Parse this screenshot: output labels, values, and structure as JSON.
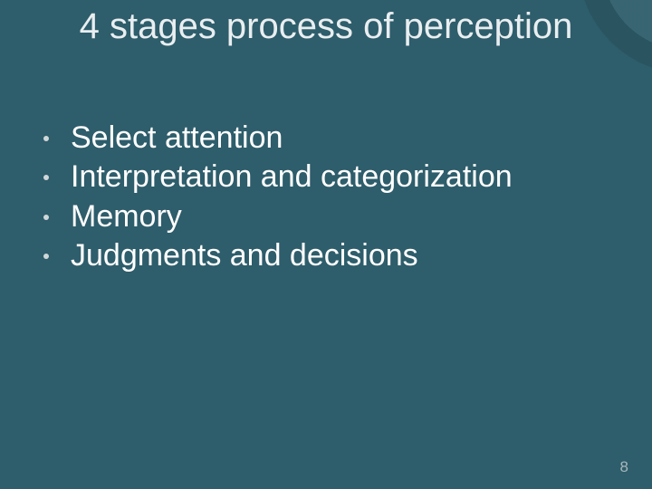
{
  "slide": {
    "background_color": "#2e5d6b",
    "text_color": "#ffffff",
    "muted_text_color": "#a8b6ba",
    "title": "4 stages process of perception",
    "title_fontsize": 40,
    "bullet_fontsize": 34,
    "bullets": [
      "Select attention",
      "Interpretation and categorization",
      "Memory",
      "Judgments and decisions"
    ],
    "page_number": "8",
    "corner_decoration": {
      "shape": "quarter-circle-arc",
      "position": "top-right",
      "outer_color": "rgba(0,0,0,0.10)",
      "inner_color": "rgba(255,255,255,0.05)"
    }
  }
}
